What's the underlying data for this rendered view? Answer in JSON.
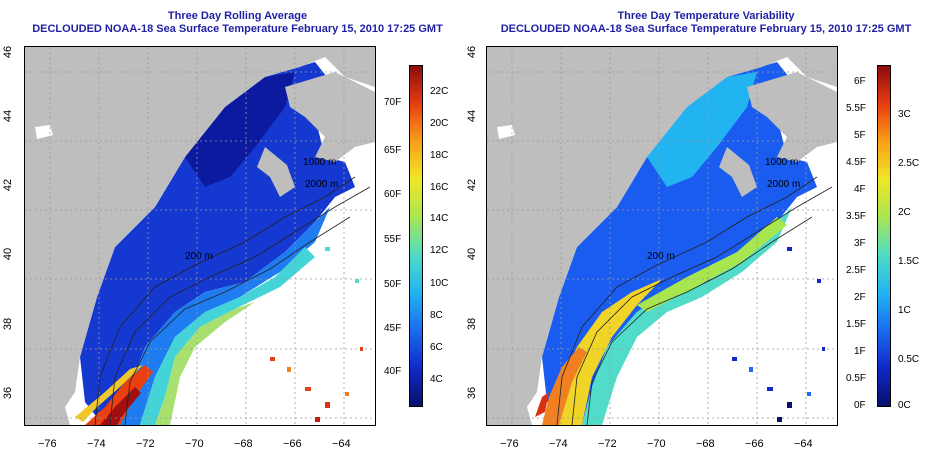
{
  "panels": [
    {
      "title": "Three Day Rolling Average",
      "subtitle": "DECLOUDED NOAA-18 Sea Surface Temperature February 15, 2010 17:25 GMT",
      "colorbar": {
        "stops": [
          "#08106b",
          "#1028c8",
          "#1a6cf0",
          "#22b4f0",
          "#50dcc8",
          "#a8e650",
          "#f0e628",
          "#f8a018",
          "#e83c10",
          "#8c0c0c"
        ],
        "fahrenheit": [
          "70F",
          "65F",
          "60F",
          "55F",
          "50F",
          "45F",
          "40F"
        ],
        "celsius": [
          "22C",
          "20C",
          "18C",
          "16C",
          "14C",
          "12C",
          "10C",
          "8C",
          "6C",
          "4C"
        ]
      }
    },
    {
      "title": "Three Day Temperature Variability",
      "subtitle": "DECLOUDED NOAA-18 Sea Surface Temperature February 15, 2010 17:25 GMT",
      "colorbar": {
        "stops": [
          "#08106b",
          "#1028c8",
          "#1a6cf0",
          "#22b4f0",
          "#50dcc8",
          "#a8e650",
          "#f0e628",
          "#f8a018",
          "#e83c10",
          "#8c0c0c"
        ],
        "fahrenheit": [
          "6F",
          "5.5F",
          "5F",
          "4.5F",
          "4F",
          "3.5F",
          "3F",
          "2.5F",
          "2F",
          "1.5F",
          "1F",
          "0.5F",
          "0F"
        ],
        "celsius": [
          "3C",
          "2.5C",
          "2C",
          "1.5C",
          "1C",
          "0.5C",
          "0C"
        ]
      }
    }
  ],
  "axes": {
    "lon_labels": [
      "−76",
      "−74",
      "−72",
      "−70",
      "−68",
      "−66",
      "−64"
    ],
    "lat_labels": [
      "36",
      "38",
      "40",
      "42",
      "44",
      "46"
    ]
  },
  "contour_labels": [
    "200 m",
    "1000 m",
    "2000 m"
  ],
  "colors": {
    "land": "#bebebe",
    "title": "#1f1fa6",
    "grid": "#9a9a9a"
  }
}
